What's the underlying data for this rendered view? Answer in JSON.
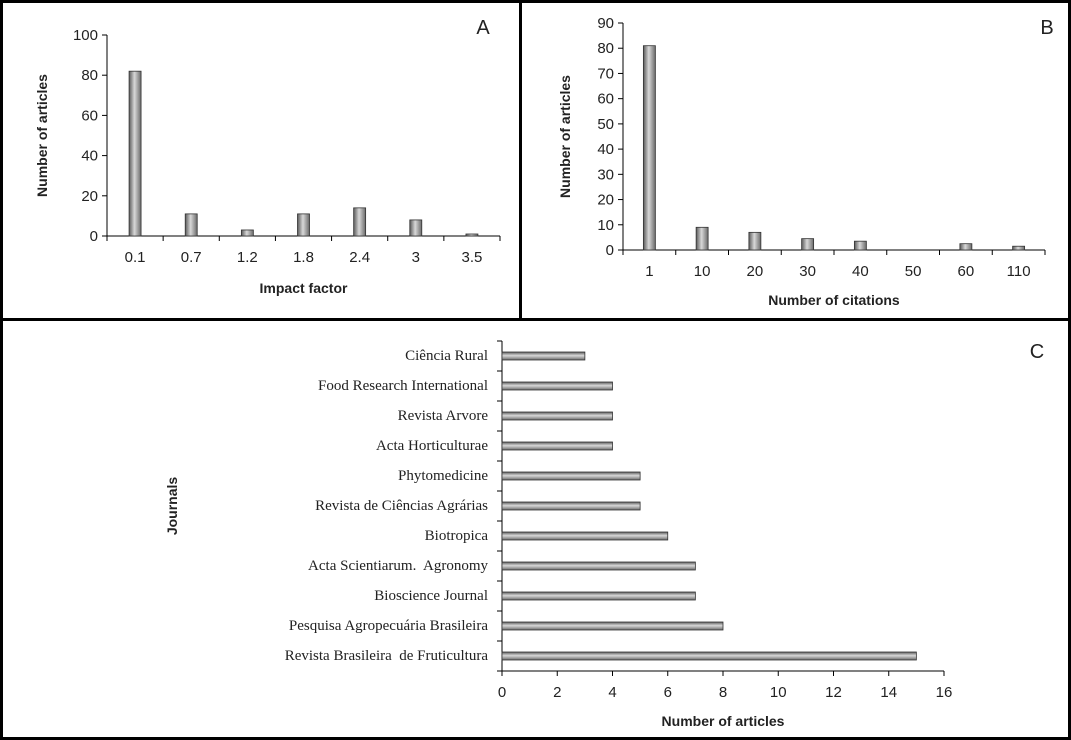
{
  "chart_data": [
    {
      "panel": "A",
      "type": "bar",
      "orientation": "vertical",
      "categories": [
        "0.1",
        "0.7",
        "1.2",
        "1.8",
        "2.4",
        "3",
        "3.5"
      ],
      "values": [
        82,
        11,
        3,
        11,
        14,
        8,
        1
      ],
      "xlabel": "Impact factor",
      "ylabel": "Number of articles",
      "ylim": [
        0,
        100
      ],
      "yticks": [
        "0",
        "20",
        "40",
        "60",
        "80",
        "100"
      ],
      "grid": false,
      "color": "#8c8c8c"
    },
    {
      "panel": "B",
      "type": "bar",
      "orientation": "vertical",
      "categories": [
        "1",
        "10",
        "20",
        "30",
        "40",
        "50",
        "60",
        "110"
      ],
      "values": [
        81,
        9,
        7,
        4.5,
        3.5,
        0,
        2.5,
        1.5
      ],
      "xlabel": "Number of citations",
      "ylabel": "Number of articles",
      "ylim": [
        0,
        90
      ],
      "yticks": [
        "0",
        "10",
        "20",
        "30",
        "40",
        "50",
        "60",
        "70",
        "80",
        "90"
      ],
      "grid": false,
      "color": "#8c8c8c"
    },
    {
      "panel": "C",
      "type": "bar",
      "orientation": "horizontal",
      "categories": [
        "Revista Brasileira  de Fruticultura",
        "Pesquisa Agropecuária Brasileira",
        "Bioscience Journal",
        "Acta Scientiarum.  Agronomy",
        "Biotropica",
        "Revista de Ciências Agrárias",
        "Phytomedicine",
        "Acta Horticulturae",
        "Revista Arvore",
        "Food Research International",
        "Ciência Rural"
      ],
      "values": [
        15,
        8,
        7,
        7,
        6,
        5,
        5,
        4,
        4,
        4,
        3
      ],
      "xlabel": "Number of articles",
      "ylabel": "Journals",
      "xlim": [
        0,
        16
      ],
      "xticks": [
        "0",
        "2",
        "4",
        "6",
        "8",
        "10",
        "12",
        "14",
        "16"
      ],
      "grid": false,
      "color": "#8c8c8c"
    }
  ]
}
